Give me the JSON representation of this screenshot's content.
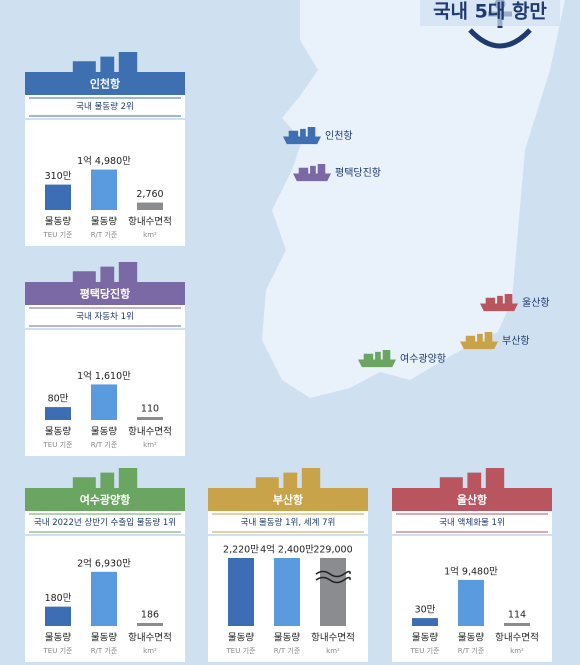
{
  "title": "국내 5대 항만",
  "map_labels": [
    "인천항",
    "평택당진항",
    "울산항",
    "부산항",
    "여수광양항"
  ],
  "ports": [
    {
      "name": "인천항",
      "subtitle": "국내 물동량 2위",
      "color": "#3e6fb0",
      "bars": [
        {
          "name": "물동량",
          "basis": "TEU 기준",
          "value": 3100000,
          "value_label": "310만"
        },
        {
          "name": "물동량",
          "basis": "R/T 기준",
          "value": 149800000,
          "value_label": "1억 4,980만"
        },
        {
          "name": "항내수면적",
          "basis": "km²",
          "value": 2760,
          "value_label": "2,760"
        }
      ]
    },
    {
      "name": "평택당진항",
      "subtitle": "국내 자동차 1위",
      "color": "#7b69a6",
      "bars": [
        {
          "name": "물동량",
          "basis": "TEU 기준",
          "value": 800000,
          "value_label": "80만"
        },
        {
          "name": "물동량",
          "basis": "R/T 기준",
          "value": 116100000,
          "value_label": "1억 1,610만"
        },
        {
          "name": "항내수면적",
          "basis": "km²",
          "value": 110,
          "value_label": "110"
        }
      ]
    },
    {
      "name": "여수광양항",
      "subtitle": "국내 2022년 상반기 수출입 물동량 1위",
      "color": "#6aa662",
      "bars": [
        {
          "name": "물동량",
          "basis": "TEU 기준",
          "value": 1800000,
          "value_label": "180만"
        },
        {
          "name": "물동량",
          "basis": "R/T 기준",
          "value": 269300000,
          "value_label": "2억 6,930만"
        },
        {
          "name": "항내수면적",
          "basis": "km²",
          "value": 186,
          "value_label": "186"
        }
      ]
    },
    {
      "name": "부산항",
      "subtitle": "국내 물동량 1위, 세계 7위",
      "color": "#c9a34a",
      "bars": [
        {
          "name": "물동량",
          "basis": "TEU 기준",
          "value": 22200000,
          "value_label": "2,220만"
        },
        {
          "name": "물동량",
          "basis": "R/T 기준",
          "value": 424000000,
          "value_label": "4억 2,400만"
        },
        {
          "name": "항내수면적",
          "basis": "km²",
          "value": 229000,
          "value_label": "229,000"
        }
      ]
    },
    {
      "name": "울산항",
      "subtitle": "국내 액체화물 1위",
      "color": "#b9555f",
      "bars": [
        {
          "name": "물동량",
          "basis": "TEU 기준",
          "value": 300000,
          "value_label": "30만"
        },
        {
          "name": "물동량",
          "basis": "R/T 기준",
          "value": 194800000,
          "value_label": "1억 9,480만"
        },
        {
          "name": "항내수면적",
          "basis": "km²",
          "value": 114,
          "value_label": "114"
        }
      ]
    }
  ]
}
